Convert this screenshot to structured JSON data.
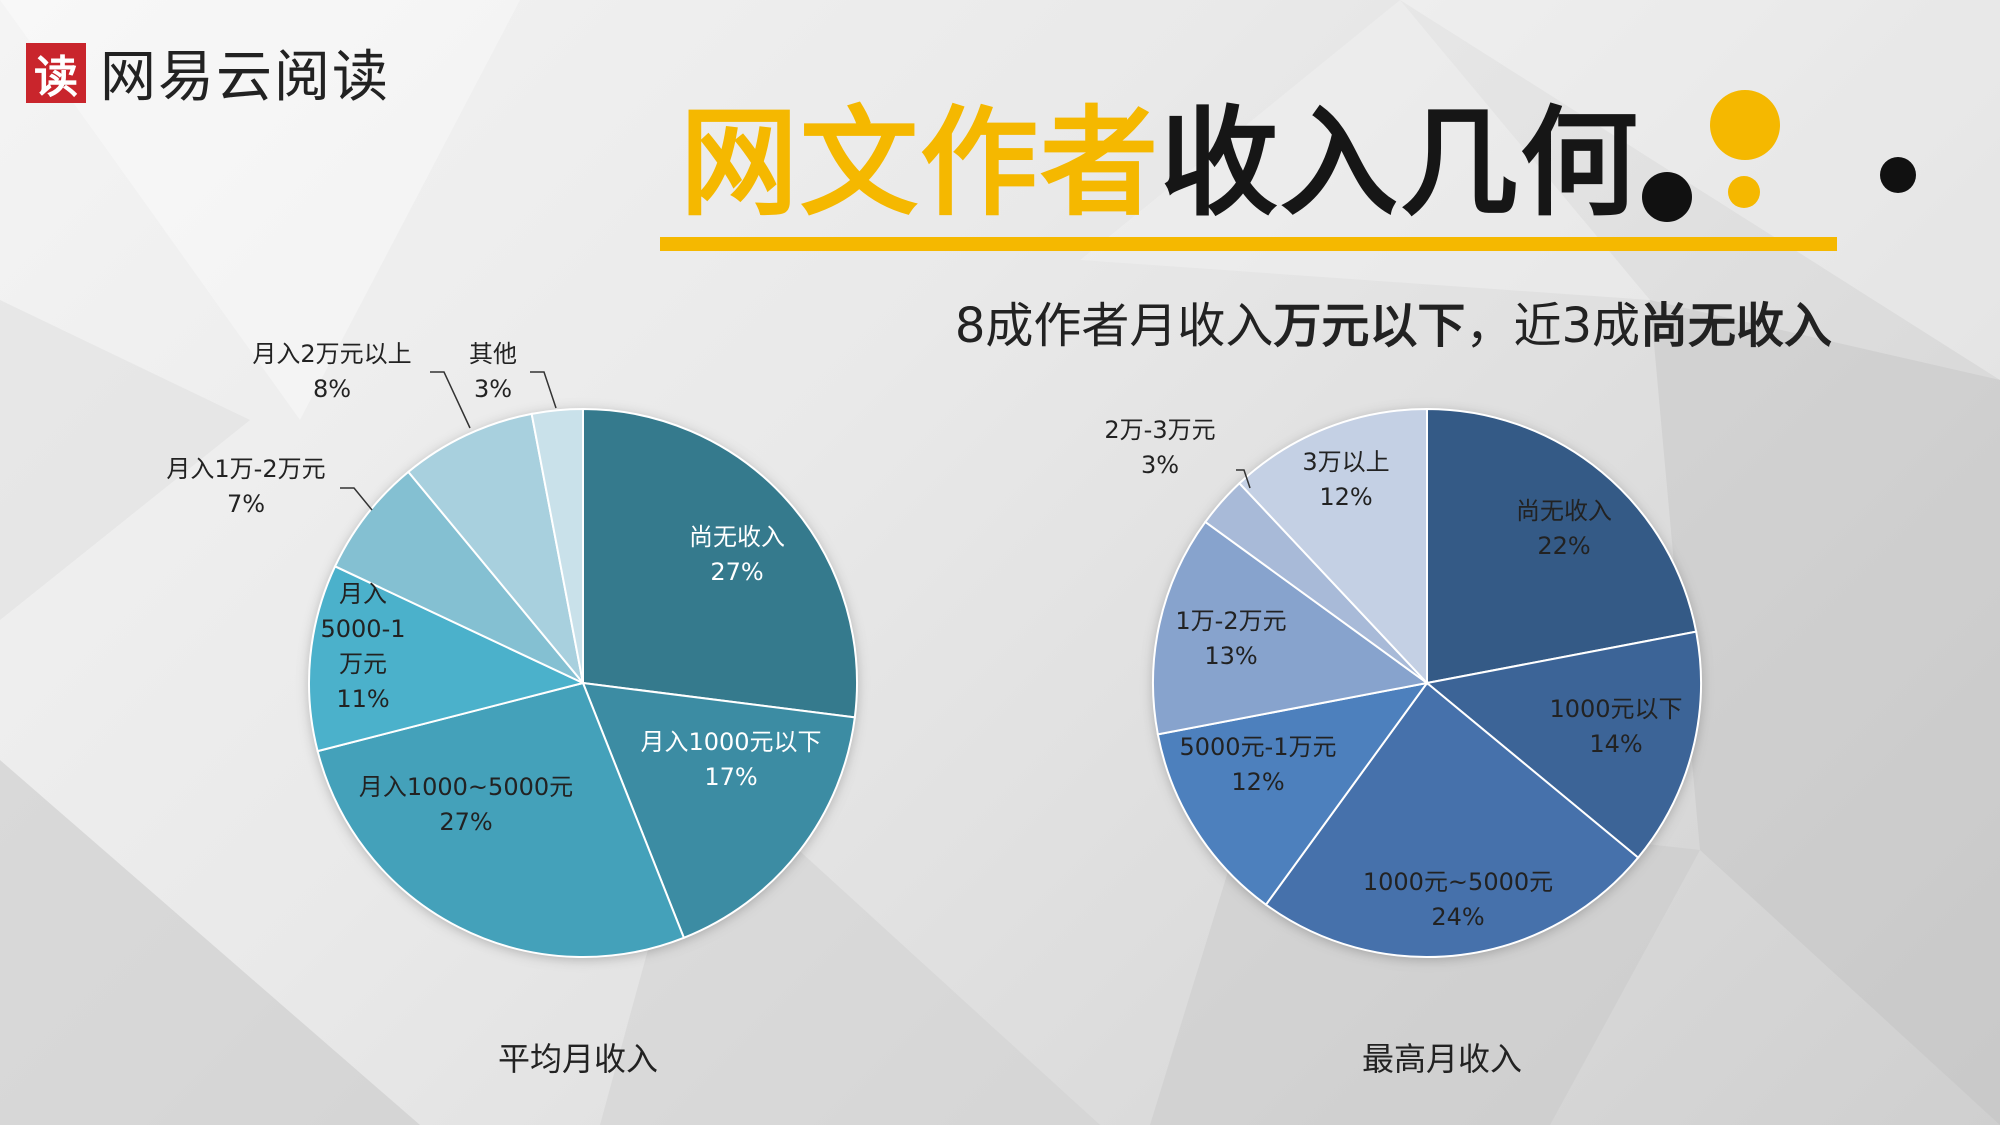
{
  "logo": {
    "mark": "读",
    "text": "网易云阅读"
  },
  "header": {
    "title_highlight": "网文作者",
    "title_rest": "收入几何",
    "subtitle_parts": [
      "8成作者月收入",
      "万元以下",
      "，近3成",
      "尚无收入"
    ],
    "accent_color": "#f5b800"
  },
  "chart_data": [
    {
      "type": "pie",
      "title": "平均月收入",
      "start_angle_deg": 0,
      "direction": "clockwise",
      "slices": [
        {
          "label": "尚无收入",
          "percent": "27%",
          "value": 27,
          "color": "#357a8d"
        },
        {
          "label": "月入1000元以下",
          "percent": "17%",
          "value": 17,
          "color": "#3c8ca3"
        },
        {
          "label": "月入1000~5000元",
          "percent": "27%",
          "value": 27,
          "color": "#44a1ba"
        },
        {
          "label": "月入5000-1万元",
          "percent": "11%",
          "value": 11,
          "color": "#4bb1cb"
        },
        {
          "label": "月入1万-2万元",
          "percent": "7%",
          "value": 7,
          "color": "#84c0d2"
        },
        {
          "label": "月入2万元以上",
          "percent": "8%",
          "value": 8,
          "color": "#a8d0de"
        },
        {
          "label": "其他",
          "percent": "3%",
          "value": 3,
          "color": "#c9e1ea"
        }
      ]
    },
    {
      "type": "pie",
      "title": "最高月收入",
      "start_angle_deg": 0,
      "direction": "clockwise",
      "slices": [
        {
          "label": "尚无收入",
          "percent": "22%",
          "value": 22,
          "color": "#345a86"
        },
        {
          "label": "1000元以下",
          "percent": "14%",
          "value": 14,
          "color": "#3c6497"
        },
        {
          "label": "1000元~5000元",
          "percent": "24%",
          "value": 24,
          "color": "#4671ab"
        },
        {
          "label": "5000元-1万元",
          "percent": "12%",
          "value": 12,
          "color": "#4d80bd"
        },
        {
          "label": "1万-2万元",
          "percent": "13%",
          "value": 13,
          "color": "#87a3cd"
        },
        {
          "label": "2万-3万元",
          "percent": "3%",
          "value": 3,
          "color": "#a8bad8"
        },
        {
          "label": "3万以上",
          "percent": "12%",
          "value": 12,
          "color": "#c4d0e4"
        }
      ]
    }
  ]
}
